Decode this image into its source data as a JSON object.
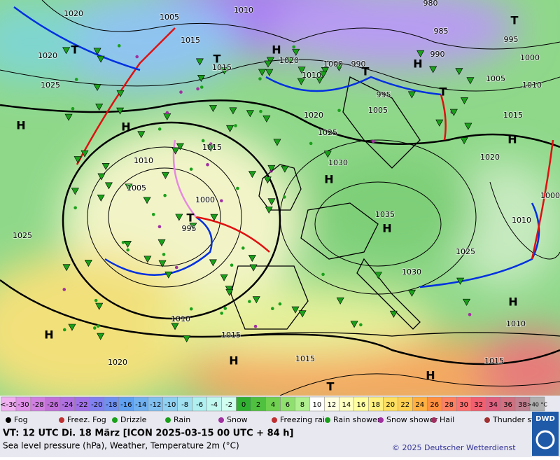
{
  "map": {
    "pressure_labels": [
      "1020",
      "1005",
      "1010",
      "980",
      "985",
      "990",
      "995",
      "1000",
      "1015",
      "1015",
      "1020",
      "1010",
      "1000",
      "990",
      "1005",
      "1010",
      "1020",
      "1025",
      "995",
      "1005",
      "1015",
      "1020",
      "1025",
      "1015",
      "1010",
      "1030",
      "1020",
      "1005",
      "1000",
      "995",
      "1035",
      "1025",
      "1010",
      "1000",
      "1025",
      "1030",
      "1010",
      "1015",
      "1010",
      "1015",
      "1015",
      "1020"
    ],
    "highs": [
      "H",
      "H",
      "H",
      "H",
      "H",
      "H",
      "H",
      "H",
      "H",
      "H",
      "H"
    ],
    "lows": [
      "T",
      "T",
      "T",
      "T",
      "T",
      "T",
      "T"
    ]
  },
  "temperature_scale": {
    "labels": [
      "<-30",
      "-30",
      "-28",
      "-26",
      "-24",
      "-22",
      "-20",
      "-18",
      "-16",
      "-14",
      "-12",
      "-10",
      "-8",
      "-6",
      "-4",
      "-2",
      "0",
      "2",
      "4",
      "6",
      "8",
      "10",
      "12",
      "14",
      "16",
      "18",
      "20",
      "22",
      "24",
      "26",
      "28",
      "30",
      "32",
      "34",
      "36",
      "38",
      ">40 °C"
    ]
  },
  "legend": {
    "items": [
      "Fog",
      "Freez. Fog",
      "Drizzle",
      "Rain",
      "Snow",
      "Freezing rain",
      "Rain shower",
      "Snow shower",
      "Hail",
      "Thunder storm"
    ]
  },
  "footer": {
    "valid_time": "VT: 12 UTC Di.  18 März [ICON 2025-03-15  00 UTC + 84 h]",
    "description": "Sea level pressure (hPa), Weather, Temperature 2m (°C)",
    "copyright": "© 2025 Deutscher Wetterdienst",
    "logo": "DWD"
  }
}
